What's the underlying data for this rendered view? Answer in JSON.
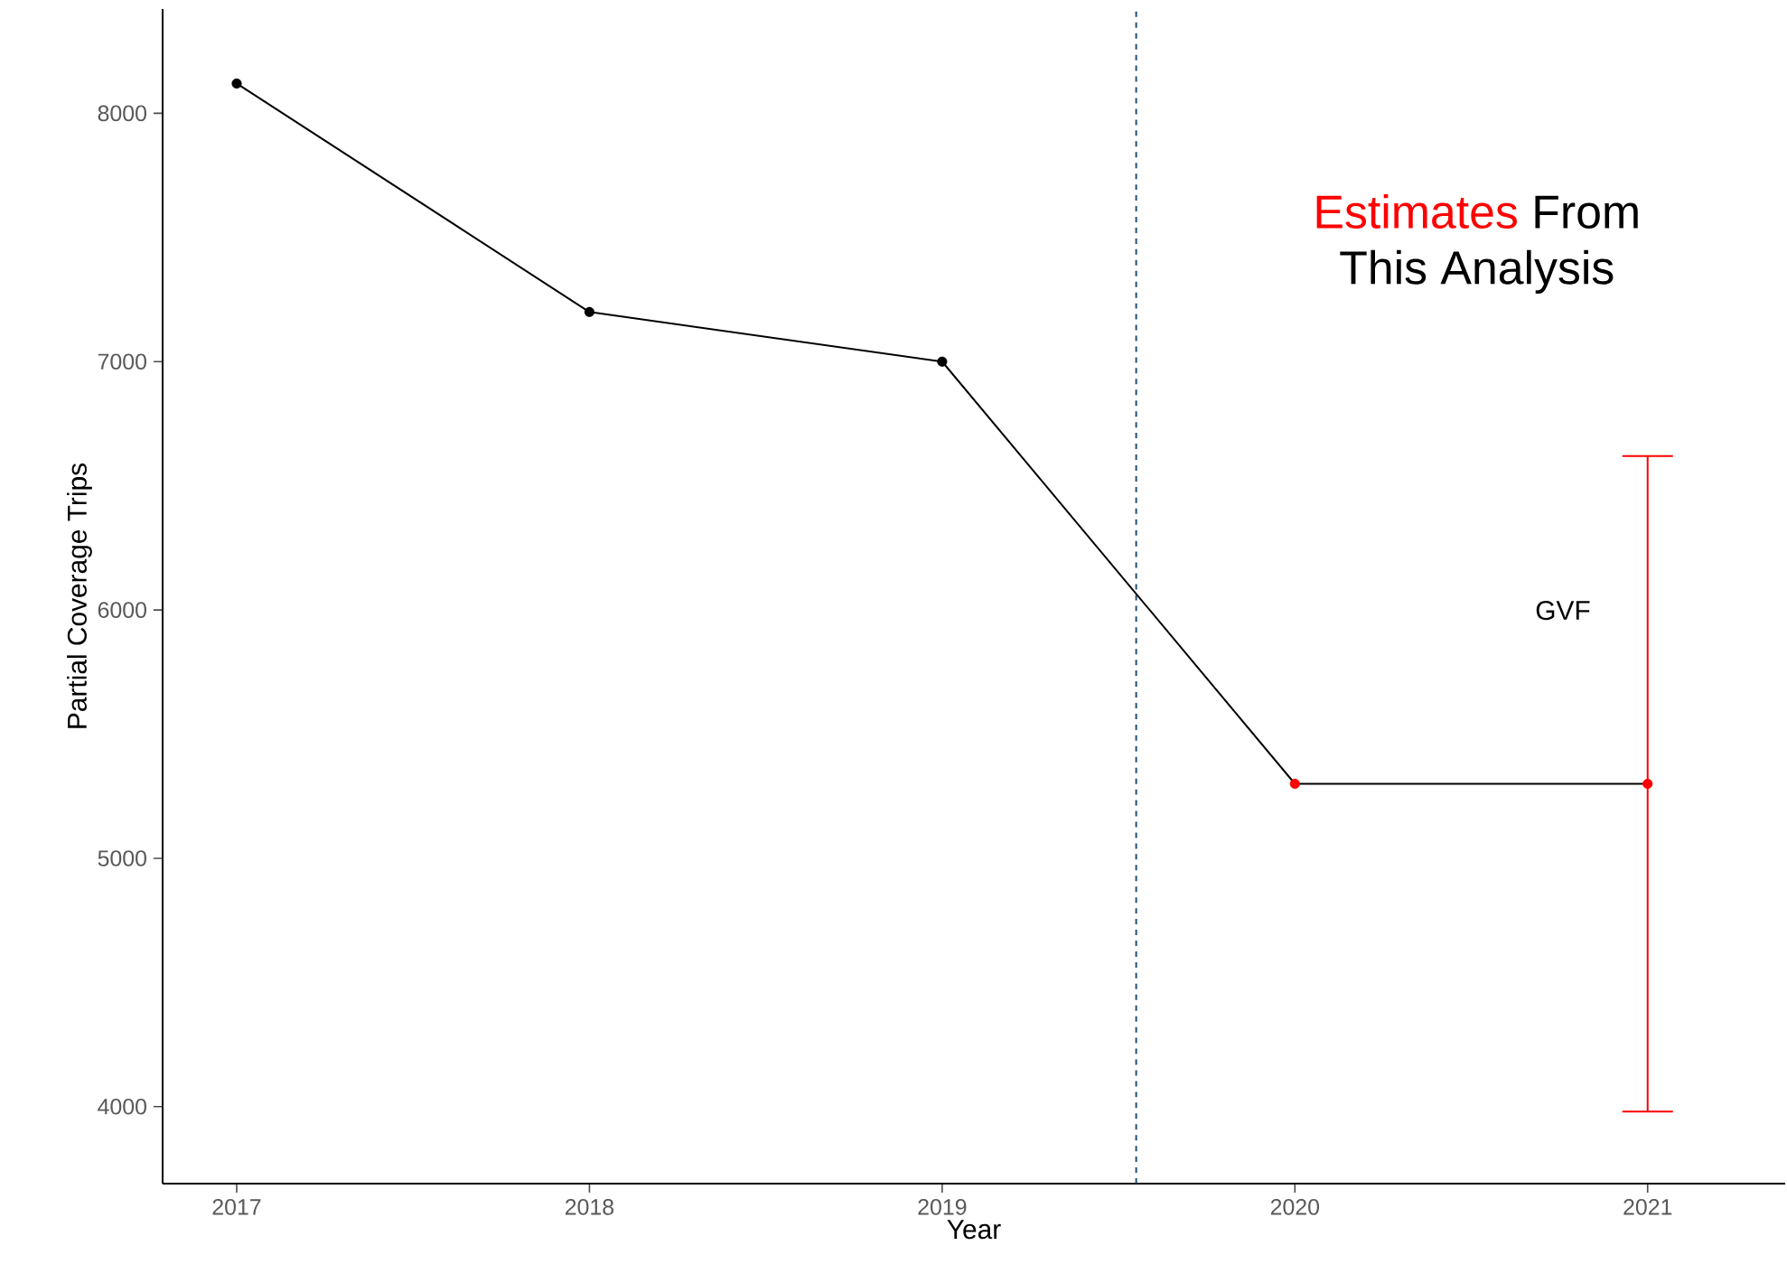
{
  "chart_data": {
    "type": "line",
    "xlabel": "Year",
    "ylabel": "Partial Coverage Trips",
    "x": [
      2017,
      2018,
      2019,
      2020,
      2021
    ],
    "series": [
      {
        "color": "#000000",
        "colors": [
          "#000000",
          "#000000",
          "#000000",
          "#ff0000",
          "#ff0000"
        ],
        "values": [
          8120,
          7200,
          7000,
          5300,
          5300
        ],
        "errors": [
          null,
          null,
          null,
          null,
          [
            3980,
            6620
          ]
        ]
      }
    ],
    "xlim": [
      2016.79,
      2021.39
    ],
    "ylim": [
      3690,
      8420
    ],
    "xticks": [
      2017,
      2018,
      2019,
      2020,
      2021
    ],
    "yticks": [
      4000,
      5000,
      6000,
      7000,
      8000
    ],
    "marker": "circle",
    "grid": false,
    "ref_lines": [
      {
        "axis": "x",
        "value": 2019.55,
        "color": "#1f4e79",
        "line_style": "dashed"
      }
    ],
    "annotations": [
      "Estimates",
      "From",
      "This Analysis",
      "GVF"
    ]
  }
}
